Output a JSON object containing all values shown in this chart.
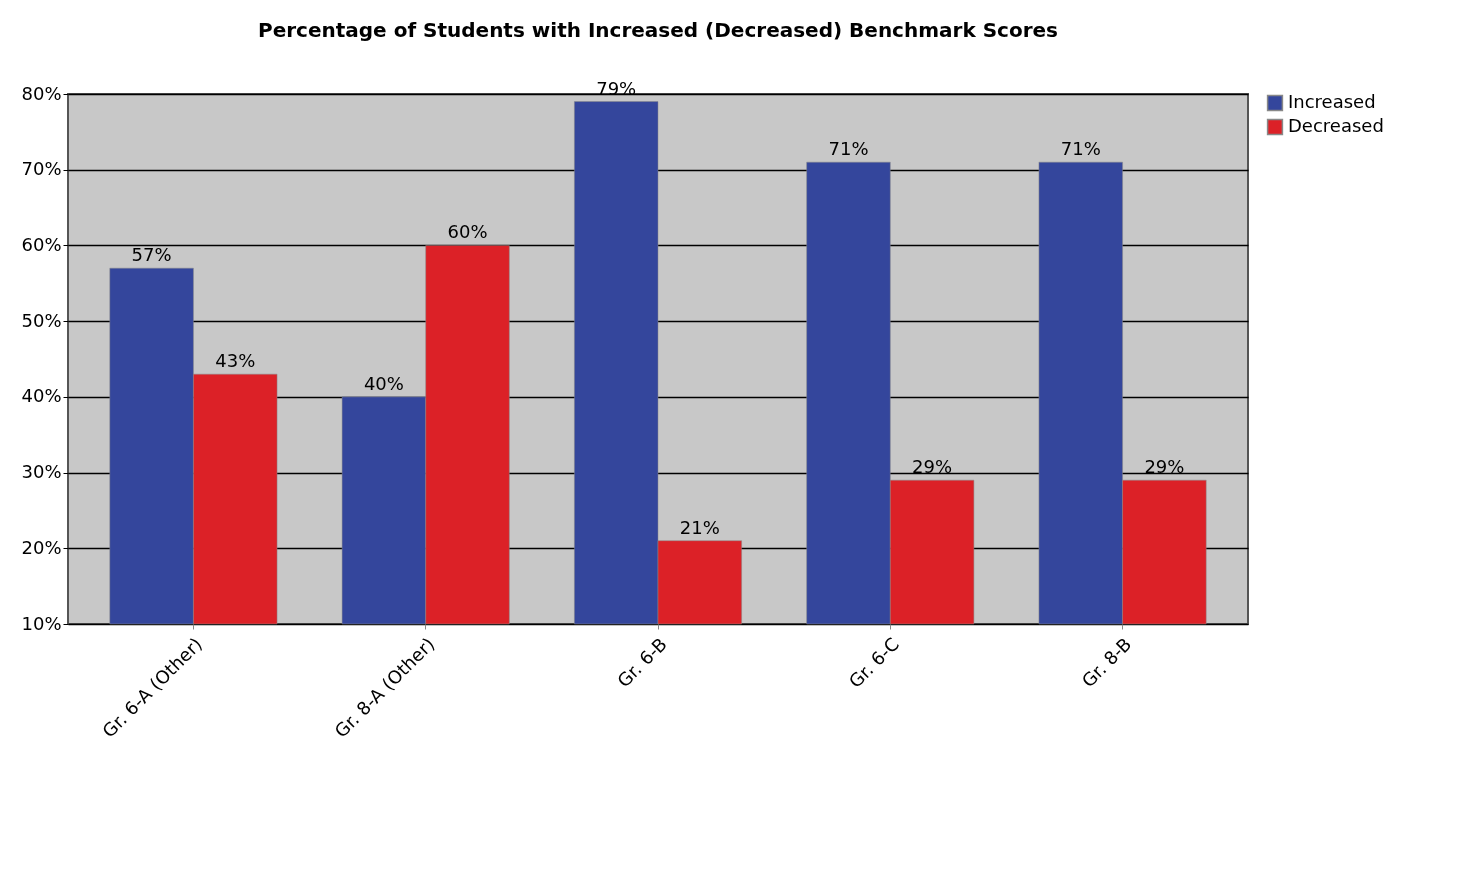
{
  "chart_data": {
    "type": "bar",
    "title": "Percentage of Students with Increased (Decreased) Benchmark Scores",
    "categories": [
      "Gr. 6-A (Other)",
      "Gr. 8-A (Other)",
      "Gr. 6-B",
      "Gr. 6-C",
      "Gr. 8-B"
    ],
    "series": [
      {
        "name": "Increased",
        "color": "#34469c",
        "values": [
          57,
          40,
          79,
          71,
          71
        ],
        "value_labels": [
          "57%",
          "40%",
          "79%",
          "71%",
          "71%"
        ]
      },
      {
        "name": "Decreased",
        "color": "#dc2127",
        "values": [
          43,
          60,
          21,
          29,
          29
        ],
        "value_labels": [
          "43%",
          "60%",
          "21%",
          "29%",
          "29%"
        ]
      }
    ],
    "ylim": [
      10,
      80
    ],
    "yticks": [
      {
        "value": 10,
        "label": "10%"
      },
      {
        "value": 20,
        "label": "20%"
      },
      {
        "value": 30,
        "label": "30%"
      },
      {
        "value": 40,
        "label": "40%"
      },
      {
        "value": 50,
        "label": "50%"
      },
      {
        "value": 60,
        "label": "60%"
      },
      {
        "value": 70,
        "label": "70%"
      },
      {
        "value": 80,
        "label": "80%"
      }
    ],
    "grid": "y",
    "legend": "right"
  }
}
